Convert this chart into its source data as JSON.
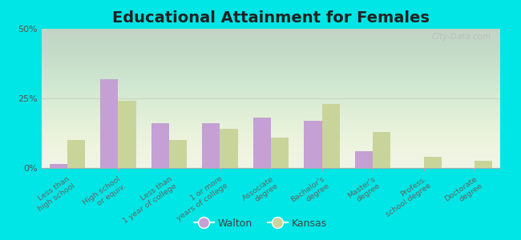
{
  "title": "Educational Attainment for Females",
  "categories": [
    "Less than\nhigh school",
    "High school\nor equiv.",
    "Less than\n1 year of college",
    "1 or more\nyears of college",
    "Associate\ndegree",
    "Bachelor's\ndegree",
    "Master's\ndegree",
    "Profess.\nschool degree",
    "Doctorate\ndegree"
  ],
  "walton": [
    1.5,
    32.0,
    16.0,
    16.0,
    18.0,
    17.0,
    6.0,
    0.0,
    0.0
  ],
  "kansas": [
    10.0,
    24.0,
    10.0,
    14.0,
    11.0,
    23.0,
    13.0,
    4.0,
    2.5
  ],
  "walton_color": "#c4a0d4",
  "kansas_color": "#c8d49a",
  "bg_outer": "#00e5e5",
  "ylim": [
    0,
    50
  ],
  "yticks": [
    0,
    25,
    50
  ],
  "ytick_labels": [
    "0%",
    "25%",
    "50%"
  ],
  "title_fontsize": 14,
  "watermark": "City-Data.com"
}
